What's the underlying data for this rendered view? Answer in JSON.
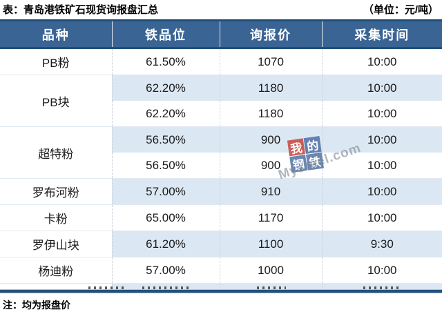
{
  "chart_data": {
    "type": "table",
    "title": "表：青岛港铁矿石现货询报盘汇总",
    "unit_label": "（单位：元/吨）",
    "columns": [
      "品种",
      "铁品位",
      "询报价",
      "采集时间"
    ],
    "groups": [
      {
        "variety": "PB粉",
        "rows": [
          [
            "61.50%",
            "1070",
            "10:00"
          ]
        ]
      },
      {
        "variety": "PB块",
        "rows": [
          [
            "62.20%",
            "1180",
            "10:00"
          ],
          [
            "62.20%",
            "1180",
            "10:00"
          ]
        ]
      },
      {
        "variety": "超特粉",
        "rows": [
          [
            "56.50%",
            "900",
            "10:00"
          ],
          [
            "56.50%",
            "900",
            "10:00"
          ]
        ]
      },
      {
        "variety": "罗布河粉",
        "rows": [
          [
            "57.00%",
            "910",
            "10:00"
          ]
        ]
      },
      {
        "variety": "卡粉",
        "rows": [
          [
            "65.00%",
            "1170",
            "10:00"
          ]
        ]
      },
      {
        "variety": "罗伊山块",
        "rows": [
          [
            "61.20%",
            "1100",
            "9:30"
          ]
        ]
      },
      {
        "variety": "杨迪粉",
        "rows": [
          [
            "57.00%",
            "1000",
            "10:00"
          ]
        ]
      }
    ],
    "note": "注：均为报盘价",
    "layout_hints": {
      "row_striping": "alternate light blue on value columns",
      "clipped_partial_row_at_bottom": true
    }
  },
  "watermark": {
    "tiles": [
      "我",
      "的",
      "钢",
      "铁"
    ],
    "brand": "Mysteel.com"
  },
  "colors": {
    "header_bg": "#3A6494",
    "border_navy": "#1F4E79",
    "row_alt_blue": "#DBE8F4",
    "watermark_red": "#C53B2F",
    "watermark_blue": "#40649E"
  }
}
